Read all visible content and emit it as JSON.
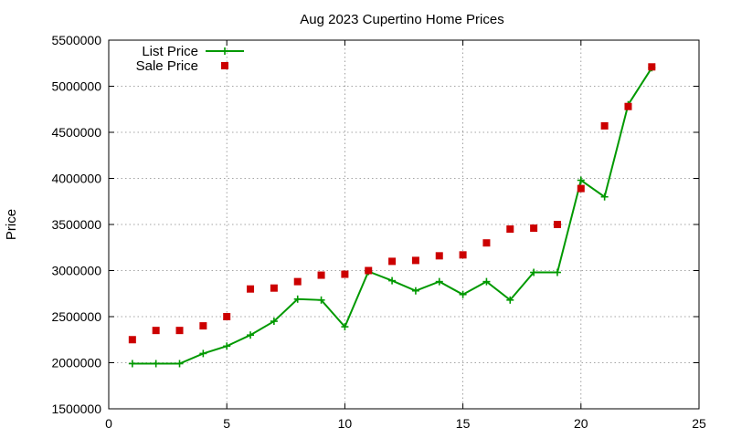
{
  "chart_data": {
    "type": "line",
    "title": "Aug 2023 Cupertino Home Prices",
    "xlabel": "",
    "ylabel": "Price",
    "xlim": [
      0,
      25
    ],
    "ylim": [
      1500000,
      5500000
    ],
    "xticks": [
      "0",
      "5",
      "10",
      "15",
      "20",
      "25"
    ],
    "yticks": [
      "1500000",
      "2000000",
      "2500000",
      "3000000",
      "3500000",
      "4000000",
      "4500000",
      "5000000",
      "5500000"
    ],
    "grid": true,
    "legend_position": "top-left",
    "x": [
      1,
      2,
      3,
      4,
      5,
      6,
      7,
      8,
      9,
      10,
      11,
      12,
      13,
      14,
      15,
      16,
      17,
      18,
      19,
      20,
      21,
      22,
      23
    ],
    "series": [
      {
        "name": "List Price",
        "style": "line-with-plus-markers",
        "color": "#009900",
        "values": [
          1990000,
          1990000,
          1990000,
          2100000,
          2180000,
          2300000,
          2450000,
          2690000,
          2680000,
          2390000,
          2990000,
          2890000,
          2780000,
          2880000,
          2740000,
          2880000,
          2680000,
          2980000,
          2980000,
          3980000,
          3800000,
          4800000,
          5200000
        ]
      },
      {
        "name": "Sale Price",
        "style": "square-markers",
        "color": "#cc0000",
        "values": [
          2250000,
          2350000,
          2350000,
          2400000,
          2500000,
          2800000,
          2810000,
          2880000,
          2950000,
          2960000,
          3000000,
          3100000,
          3110000,
          3160000,
          3170000,
          3300000,
          3450000,
          3460000,
          3500000,
          3890000,
          4570000,
          4780000,
          5210000
        ]
      }
    ]
  }
}
